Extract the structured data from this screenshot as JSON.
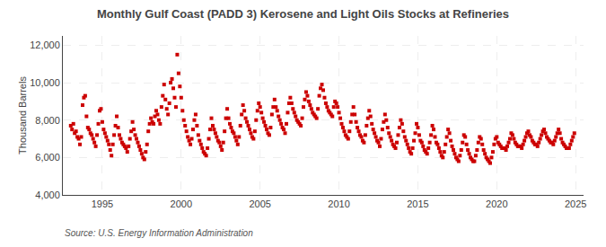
{
  "chart_data": {
    "type": "scatter",
    "title": "Monthly Gulf Coast (PADD 3) Kerosene and Light Oils Stocks at Refineries",
    "ylabel": "Thousand Barrels",
    "annotations": [
      "Source: U.S. Energy Information Administration"
    ],
    "color": "#cc0000",
    "marker": "square",
    "grid": true,
    "xlim": [
      1992.5,
      2025.5
    ],
    "ylim": [
      4000,
      12500
    ],
    "xticks": [
      1995,
      2000,
      2005,
      2010,
      2015,
      2020,
      2025
    ],
    "yticks": [
      {
        "value": 4000,
        "label": "4,000"
      },
      {
        "value": 6000,
        "label": "6,000"
      },
      {
        "value": 8000,
        "label": "8,000"
      },
      {
        "value": 10000,
        "label": "10,000"
      },
      {
        "value": 12000,
        "label": "12,000"
      }
    ],
    "x": [
      1993,
      1993.083333333333,
      1993.166666666667,
      1993.25,
      1993.333333333333,
      1993.416666666667,
      1993.5,
      1993.583333333333,
      1993.666666666667,
      1993.75,
      1993.833333333333,
      1993.916666666667,
      1994,
      1994.083333333333,
      1994.166666666667,
      1994.25,
      1994.333333333333,
      1994.416666666667,
      1994.5,
      1994.583333333333,
      1994.666666666667,
      1994.75,
      1994.833333333333,
      1994.916666666667,
      1995,
      1995.083333333333,
      1995.166666666667,
      1995.25,
      1995.333333333333,
      1995.416666666667,
      1995.5,
      1995.583333333333,
      1995.666666666667,
      1995.75,
      1995.833333333333,
      1995.916666666667,
      1996,
      1996.083333333333,
      1996.166666666667,
      1996.25,
      1996.333333333333,
      1996.416666666667,
      1996.5,
      1996.583333333333,
      1996.666666666667,
      1996.75,
      1996.833333333333,
      1996.916666666667,
      1997,
      1997.083333333333,
      1997.166666666667,
      1997.25,
      1997.333333333333,
      1997.416666666667,
      1997.5,
      1997.583333333333,
      1997.666666666667,
      1997.75,
      1997.833333333333,
      1997.916666666667,
      1998,
      1998.083333333333,
      1998.166666666667,
      1998.25,
      1998.333333333333,
      1998.416666666667,
      1998.5,
      1998.583333333333,
      1998.666666666667,
      1998.75,
      1998.833333333333,
      1998.916666666667,
      1999,
      1999.083333333333,
      1999.166666666667,
      1999.25,
      1999.333333333333,
      1999.416666666667,
      1999.5,
      1999.583333333333,
      1999.666666666667,
      1999.75,
      1999.833333333333,
      1999.916666666667,
      2000,
      2000.083333333333,
      2000.166666666667,
      2000.25,
      2000.333333333333,
      2000.416666666667,
      2000.5,
      2000.583333333333,
      2000.666666666667,
      2000.75,
      2000.833333333333,
      2000.916666666667,
      2001,
      2001.083333333333,
      2001.166666666667,
      2001.25,
      2001.333333333333,
      2001.416666666667,
      2001.5,
      2001.583333333333,
      2001.666666666667,
      2001.75,
      2001.833333333333,
      2001.916666666667,
      2002,
      2002.083333333333,
      2002.166666666667,
      2002.25,
      2002.333333333333,
      2002.416666666667,
      2002.5,
      2002.583333333333,
      2002.666666666667,
      2002.75,
      2002.833333333333,
      2002.916666666667,
      2003,
      2003.083333333333,
      2003.166666666667,
      2003.25,
      2003.333333333333,
      2003.416666666667,
      2003.5,
      2003.583333333333,
      2003.666666666667,
      2003.75,
      2003.833333333333,
      2003.916666666667,
      2004,
      2004.083333333333,
      2004.166666666667,
      2004.25,
      2004.333333333333,
      2004.416666666667,
      2004.5,
      2004.583333333333,
      2004.666666666667,
      2004.75,
      2004.833333333333,
      2004.916666666667,
      2005,
      2005.083333333333,
      2005.166666666667,
      2005.25,
      2005.333333333333,
      2005.416666666667,
      2005.5,
      2005.583333333333,
      2005.666666666667,
      2005.75,
      2005.833333333333,
      2005.916666666667,
      2006,
      2006.083333333333,
      2006.166666666667,
      2006.25,
      2006.333333333333,
      2006.416666666667,
      2006.5,
      2006.583333333333,
      2006.666666666667,
      2006.75,
      2006.833333333333,
      2006.916666666667,
      2007,
      2007.083333333333,
      2007.166666666667,
      2007.25,
      2007.333333333333,
      2007.416666666667,
      2007.5,
      2007.583333333333,
      2007.666666666667,
      2007.75,
      2007.833333333333,
      2007.916666666667,
      2008,
      2008.083333333333,
      2008.166666666667,
      2008.25,
      2008.333333333333,
      2008.416666666667,
      2008.5,
      2008.583333333333,
      2008.666666666667,
      2008.75,
      2008.833333333333,
      2008.916666666667,
      2009,
      2009.083333333333,
      2009.166666666667,
      2009.25,
      2009.333333333333,
      2009.416666666667,
      2009.5,
      2009.583333333333,
      2009.666666666667,
      2009.75,
      2009.833333333333,
      2009.916666666667,
      2010,
      2010.083333333333,
      2010.166666666667,
      2010.25,
      2010.333333333333,
      2010.416666666667,
      2010.5,
      2010.583333333333,
      2010.666666666667,
      2010.75,
      2010.833333333333,
      2010.916666666667,
      2011,
      2011.083333333333,
      2011.166666666667,
      2011.25,
      2011.333333333333,
      2011.416666666667,
      2011.5,
      2011.583333333333,
      2011.666666666667,
      2011.75,
      2011.833333333333,
      2011.916666666667,
      2012,
      2012.083333333333,
      2012.166666666667,
      2012.25,
      2012.333333333333,
      2012.416666666667,
      2012.5,
      2012.583333333333,
      2012.666666666667,
      2012.75,
      2012.833333333333,
      2012.916666666667,
      2013,
      2013.083333333333,
      2013.166666666667,
      2013.25,
      2013.333333333333,
      2013.416666666667,
      2013.5,
      2013.583333333333,
      2013.666666666667,
      2013.75,
      2013.833333333333,
      2013.916666666667,
      2014,
      2014.083333333333,
      2014.166666666667,
      2014.25,
      2014.333333333333,
      2014.416666666667,
      2014.5,
      2014.583333333333,
      2014.666666666667,
      2014.75,
      2014.833333333333,
      2014.916666666667,
      2015,
      2015.083333333333,
      2015.166666666667,
      2015.25,
      2015.333333333333,
      2015.416666666667,
      2015.5,
      2015.583333333333,
      2015.666666666667,
      2015.75,
      2015.833333333333,
      2015.916666666667,
      2016,
      2016.083333333333,
      2016.166666666667,
      2016.25,
      2016.333333333333,
      2016.416666666667,
      2016.5,
      2016.583333333333,
      2016.666666666667,
      2016.75,
      2016.833333333333,
      2016.916666666667,
      2017,
      2017.083333333333,
      2017.166666666667,
      2017.25,
      2017.333333333333,
      2017.416666666667,
      2017.5,
      2017.583333333333,
      2017.666666666667,
      2017.75,
      2017.833333333333,
      2017.916666666667,
      2018,
      2018.083333333333,
      2018.166666666667,
      2018.25,
      2018.333333333333,
      2018.416666666667,
      2018.5,
      2018.583333333333,
      2018.666666666667,
      2018.75,
      2018.833333333333,
      2018.916666666667,
      2019,
      2019.083333333333,
      2019.166666666667,
      2019.25,
      2019.333333333333,
      2019.416666666667,
      2019.5,
      2019.583333333333,
      2019.666666666667,
      2019.75,
      2019.833333333333,
      2019.916666666667,
      2020,
      2020.083333333333,
      2020.166666666667,
      2020.25,
      2020.333333333333,
      2020.416666666667,
      2020.5,
      2020.583333333333,
      2020.666666666667,
      2020.75,
      2020.833333333333,
      2020.916666666667,
      2021,
      2021.083333333333,
      2021.166666666667,
      2021.25,
      2021.333333333333,
      2021.416666666667,
      2021.5,
      2021.583333333333,
      2021.666666666667,
      2021.75,
      2021.833333333333,
      2021.916666666667,
      2022,
      2022.083333333333,
      2022.166666666667,
      2022.25,
      2022.333333333333,
      2022.416666666667,
      2022.5,
      2022.583333333333,
      2022.666666666667,
      2022.75,
      2022.833333333333,
      2022.916666666667,
      2023,
      2023.083333333333,
      2023.166666666667,
      2023.25,
      2023.333333333333,
      2023.416666666667,
      2023.5,
      2023.583333333333,
      2023.666666666667,
      2023.75,
      2023.833333333333,
      2023.916666666667,
      2024,
      2024.083333333333,
      2024.166666666667,
      2024.25,
      2024.333333333333,
      2024.416666666667,
      2024.5,
      2024.583333333333,
      2024.666666666667,
      2024.75,
      2024.833333333333,
      2024.916666666667
    ],
    "values": [
      7700,
      7500,
      7800,
      7300,
      7400,
      7100,
      7000,
      6700,
      7100,
      8800,
      9200,
      9300,
      8200,
      7600,
      7500,
      7300,
      7200,
      7000,
      6800,
      6600,
      7200,
      7800,
      8500,
      8600,
      7900,
      7500,
      7300,
      7100,
      6900,
      6700,
      6400,
      6100,
      6700,
      7200,
      7700,
      8200,
      7600,
      7200,
      7000,
      6800,
      6700,
      6600,
      6500,
      6300,
      6600,
      7000,
      7400,
      7900,
      7500,
      7200,
      7000,
      6800,
      6600,
      6400,
      6200,
      6000,
      5900,
      6300,
      6700,
      7400,
      7800,
      8100,
      7900,
      7800,
      8200,
      8500,
      8300,
      8000,
      7800,
      8700,
      9300,
      9900,
      9100,
      8600,
      8300,
      8900,
      10000,
      10200,
      9700,
      9200,
      8700,
      11500,
      10500,
      9800,
      9200,
      8500,
      8000,
      7700,
      7400,
      7100,
      6900,
      6700,
      7000,
      7500,
      8000,
      8300,
      7700,
      7200,
      6900,
      6700,
      6500,
      6300,
      6200,
      6100,
      6500,
      7000,
      7500,
      8100,
      7700,
      7500,
      7300,
      7100,
      6900,
      6800,
      6600,
      6400,
      6800,
      7400,
      8100,
      8600,
      8100,
      7800,
      7600,
      7400,
      7300,
      7100,
      6900,
      6700,
      7100,
      7700,
      8300,
      8800,
      8500,
      8100,
      7900,
      7700,
      7500,
      7300,
      7100,
      7000,
      7400,
      8000,
      8500,
      8900,
      8700,
      8400,
      8100,
      7900,
      7700,
      7500,
      7300,
      7200,
      7600,
      8300,
      8700,
      9100,
      8700,
      8500,
      8200,
      8000,
      7800,
      7600,
      7500,
      7300,
      7800,
      8400,
      8900,
      9200,
      8900,
      8600,
      8400,
      8200,
      8000,
      7900,
      7800,
      7700,
      8100,
      8700,
      9100,
      9500,
      9300,
      9000,
      8800,
      8600,
      8400,
      8300,
      8200,
      8100,
      8600,
      9300,
      9700,
      9900,
      9600,
      9200,
      8900,
      8700,
      8500,
      8400,
      8300,
      8200,
      8700,
      9000,
      8900,
      8700,
      8400,
      8100,
      7800,
      7600,
      7400,
      7200,
      7100,
      7000,
      7400,
      7900,
      8300,
      8700,
      8300,
      7900,
      7600,
      7400,
      7200,
      7100,
      6900,
      6800,
      7200,
      7700,
      8100,
      8500,
      8200,
      7800,
      7500,
      7300,
      7100,
      6900,
      6800,
      6600,
      7000,
      7500,
      7900,
      8300,
      8000,
      7600,
      7300,
      7100,
      6900,
      6700,
      6600,
      6500,
      6800,
      7200,
      7600,
      8000,
      7800,
      7400,
      7100,
      6900,
      6700,
      6500,
      6300,
      6200,
      6500,
      6900,
      7300,
      7800,
      7600,
      7200,
      6900,
      6800,
      6600,
      6400,
      6300,
      6200,
      6500,
      6800,
      7200,
      7700,
      7500,
      7100,
      6800,
      6700,
      6500,
      6300,
      6100,
      6000,
      6300,
      6700,
      7100,
      7500,
      7300,
      6900,
      6600,
      6400,
      6200,
      6000,
      5900,
      5800,
      6100,
      6400,
      6800,
      7200,
      7100,
      6700,
      6400,
      6200,
      6000,
      5900,
      5800,
      5800,
      6100,
      6400,
      6800,
      7100,
      7000,
      6700,
      6400,
      6200,
      6000,
      5900,
      5800,
      5700,
      6000,
      6300,
      6700,
      7000,
      7100,
      6800,
      6700,
      6600,
      6500,
      6500,
      6500,
      6400,
      6600,
      6800,
      7000,
      7300,
      7200,
      7000,
      6800,
      6700,
      6600,
      6600,
      6600,
      6500,
      6700,
      6900,
      7100,
      7300,
      7400,
      7200,
      7100,
      6900,
      6800,
      6700,
      6700,
      6600,
      6800,
      7000,
      7200,
      7400,
      7500,
      7300,
      7100,
      7000,
      6900,
      6800,
      6800,
      6700,
      6900,
      7100,
      7300,
      7500,
      7300,
      7000,
      6800,
      6700,
      6600,
      6500,
      6500,
      6500,
      6700,
      6900,
      7100,
      7300
    ]
  }
}
